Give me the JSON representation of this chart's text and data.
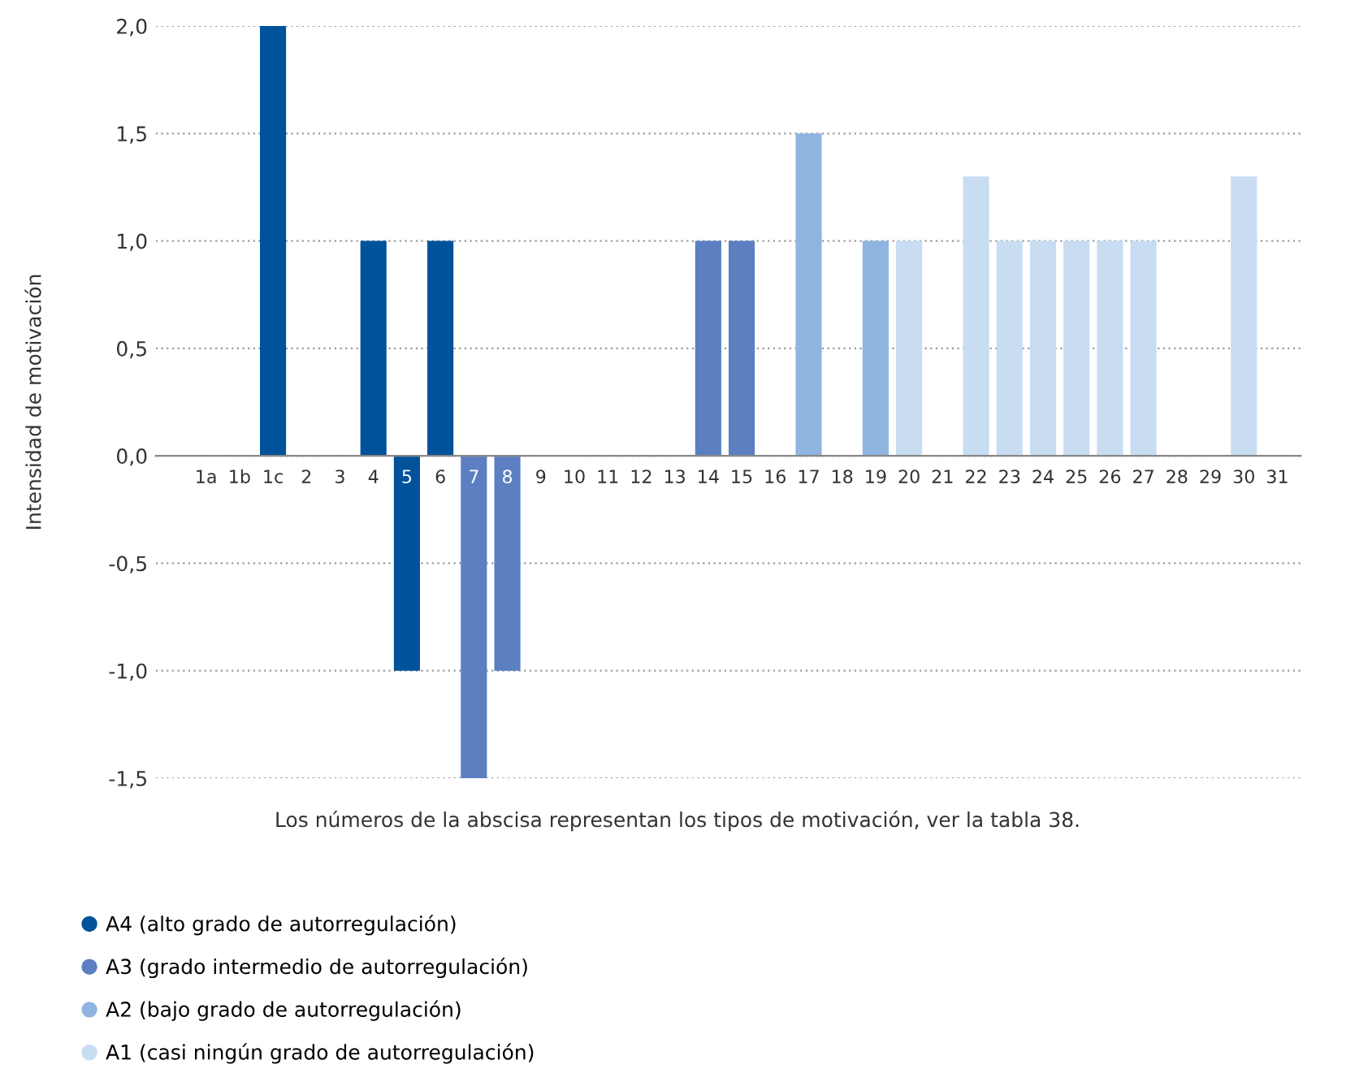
{
  "chart_data": {
    "type": "bar",
    "ylabel": "Intensidad de motivación",
    "categories": [
      "1a",
      "1b",
      "1c",
      "2",
      "3",
      "4",
      "5",
      "6",
      "7",
      "8",
      "9",
      "10",
      "11",
      "12",
      "13",
      "14",
      "15",
      "16",
      "17",
      "18",
      "19",
      "20",
      "21",
      "22",
      "23",
      "24",
      "25",
      "26",
      "27",
      "28",
      "29",
      "30",
      "31"
    ],
    "series": [
      {
        "name": "A4 (alto grado de autorregulación)",
        "color": "#00529b",
        "values": [
          null,
          null,
          2.0,
          null,
          null,
          1,
          -1,
          1,
          null,
          null,
          null,
          null,
          null,
          null,
          null,
          null,
          null,
          null,
          null,
          null,
          null,
          null,
          null,
          null,
          null,
          null,
          null,
          null,
          null,
          null,
          null,
          null,
          null
        ]
      },
      {
        "name": "A3 (grado intermedio de autorregulación)",
        "color": "#5b7fc0",
        "values": [
          null,
          null,
          null,
          null,
          null,
          null,
          null,
          null,
          -1.5,
          -1,
          null,
          null,
          null,
          null,
          null,
          1,
          1,
          null,
          null,
          null,
          null,
          null,
          null,
          null,
          null,
          null,
          null,
          null,
          null,
          null,
          null,
          null,
          null
        ]
      },
      {
        "name": "A2 (bajo grado de autorregulación)",
        "color": "#8fb4e0",
        "values": [
          null,
          null,
          null,
          null,
          null,
          null,
          null,
          null,
          null,
          null,
          null,
          null,
          null,
          null,
          null,
          null,
          null,
          null,
          1.5,
          null,
          1,
          null,
          null,
          null,
          null,
          null,
          null,
          null,
          null,
          null,
          null,
          null,
          null
        ]
      },
      {
        "name": "A1 (casi ningún grado de autorregulación)",
        "color": "#c8ddf2",
        "values": [
          null,
          null,
          null,
          null,
          null,
          null,
          null,
          null,
          null,
          null,
          null,
          null,
          null,
          null,
          null,
          null,
          null,
          null,
          null,
          null,
          null,
          1,
          null,
          1.3,
          1,
          1,
          1,
          1,
          1,
          null,
          null,
          1.3,
          null
        ]
      }
    ],
    "ylim": [
      -1.5,
      2.0
    ],
    "yticks": [
      {
        "value": -1.5,
        "label": "-1,5"
      },
      {
        "value": -1.0,
        "label": "-1,0"
      },
      {
        "value": -0.5,
        "label": "-0,5"
      },
      {
        "value": 0,
        "label": "0,0"
      },
      {
        "value": 0.5,
        "label": "0,5"
      },
      {
        "value": 1.0,
        "label": "1,0"
      },
      {
        "value": 1.5,
        "label": "1,5"
      },
      {
        "value": 2.0,
        "label": "2,0"
      }
    ],
    "grid": "y",
    "legend": "bottom left",
    "annotations": [
      "Los números de la abscisa representan los tipos de motivación, ver la tabla 38."
    ]
  }
}
